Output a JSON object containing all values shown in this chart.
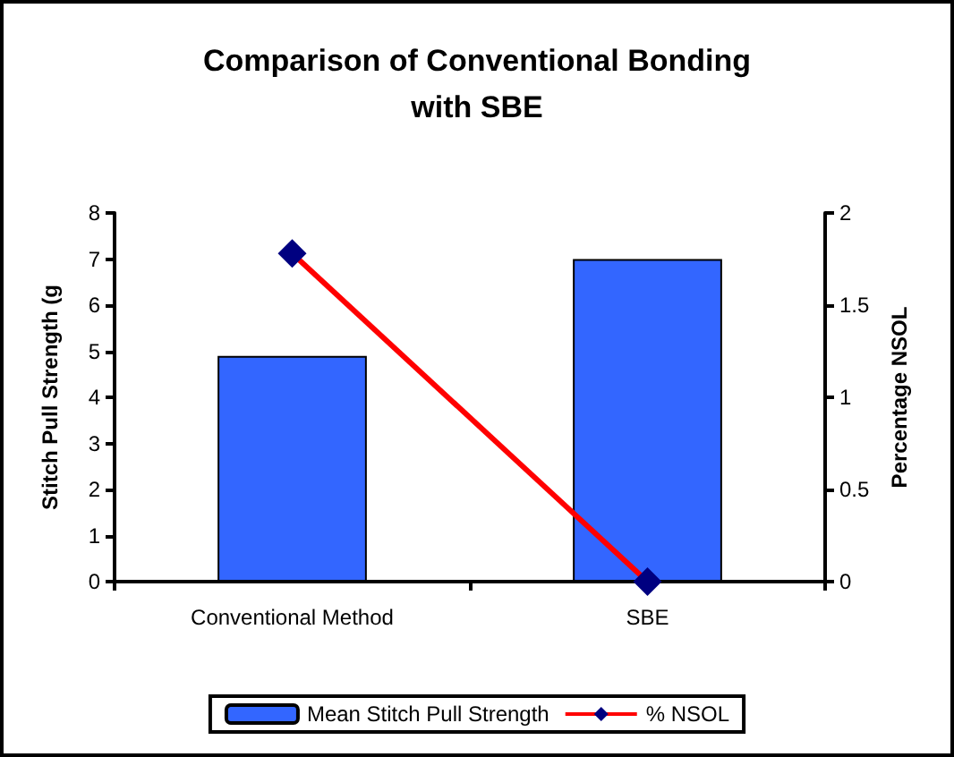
{
  "chart_data": {
    "type": "bar",
    "title": "Comparison of Conventional Bonding\nwith SBE",
    "categories": [
      "Conventional Method",
      "SBE"
    ],
    "series": [
      {
        "name": "Mean Stitch Pull Strength",
        "color": "#3366ff",
        "values": [
          4.9,
          7.0
        ]
      },
      {
        "name": "% NSOL",
        "type": "line",
        "axis": "y2",
        "color": "#ff0000",
        "values": [
          1.78,
          0
        ]
      }
    ],
    "ylabel": "Stitch Pull Strength (g",
    "y2label": "Percentage NSOL",
    "ylim": [
      0,
      8
    ],
    "yticks": [
      0,
      1,
      2,
      3,
      4,
      5,
      6,
      7,
      8
    ],
    "y2lim": [
      0,
      2
    ],
    "y2ticks": [
      0,
      0.5,
      1,
      1.5,
      2
    ],
    "marker": "diamond",
    "legend": "bottom",
    "grid": false
  }
}
